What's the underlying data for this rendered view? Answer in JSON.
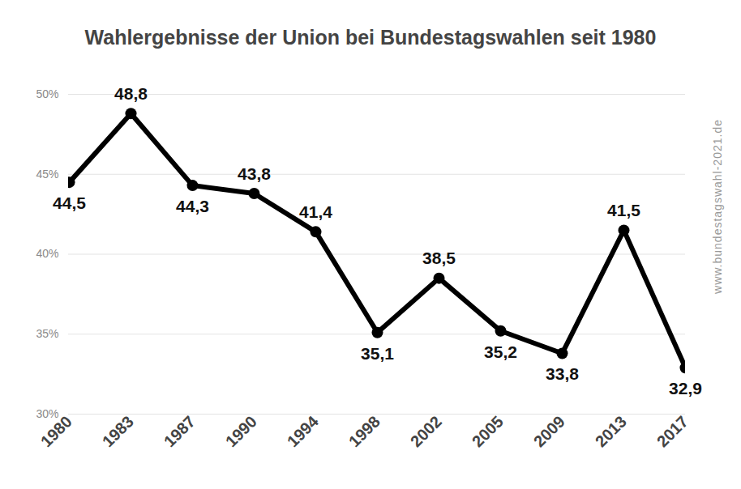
{
  "chart_data": {
    "type": "line",
    "title": "Wahlergebnisse der Union bei Bundestagswahlen seit 1980",
    "source": "www.bundestagswahl-2021.de",
    "categories": [
      "1980",
      "1983",
      "1987",
      "1990",
      "1994",
      "1998",
      "2002",
      "2005",
      "2009",
      "2013",
      "2017"
    ],
    "values": [
      44.5,
      48.8,
      44.3,
      43.8,
      41.4,
      35.1,
      38.5,
      35.2,
      33.8,
      41.5,
      32.9
    ],
    "value_labels": [
      "44,5",
      "48,8",
      "44,3",
      "43,8",
      "41,4",
      "35,1",
      "38,5",
      "35,2",
      "33,8",
      "41,5",
      "32,9"
    ],
    "color": "#000000",
    "marker": "circle",
    "ylim": [
      30,
      50
    ],
    "yticks": [
      {
        "value": 30,
        "label": "30%"
      },
      {
        "value": 35,
        "label": "35%"
      },
      {
        "value": 40,
        "label": "40%"
      },
      {
        "value": 45,
        "label": "45%"
      },
      {
        "value": 50,
        "label": "50%"
      }
    ],
    "grid": true,
    "data_labels": true
  }
}
